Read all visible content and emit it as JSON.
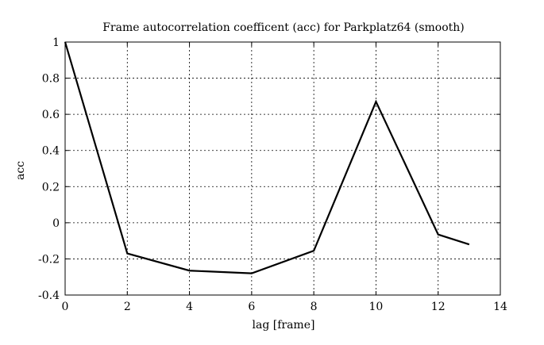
{
  "chart_data": {
    "type": "line",
    "title": "Frame autocorrelation coefficent (acc) for Parkplatz64 (smooth)",
    "xlabel": "lag [frame]",
    "ylabel": "acc",
    "xlim": [
      0,
      14
    ],
    "ylim": [
      -0.4,
      1
    ],
    "xticks": [
      0,
      2,
      4,
      6,
      8,
      10,
      12,
      14
    ],
    "yticks": [
      -0.4,
      -0.2,
      0,
      0.2,
      0.4,
      0.6,
      0.8,
      1
    ],
    "xtick_labels": [
      "0",
      "2",
      "4",
      "6",
      "8",
      "10",
      "12",
      "14"
    ],
    "ytick_labels": [
      "-0.4",
      "-0.2",
      "0",
      "0.2",
      "0.4",
      "0.6",
      "0.8",
      "1"
    ],
    "grid": true,
    "line_color": "#000000",
    "series": [
      {
        "x": [
          0,
          2,
          4,
          6,
          8,
          10,
          12,
          13
        ],
        "values": [
          1.0,
          -0.17,
          -0.265,
          -0.28,
          -0.155,
          0.67,
          -0.065,
          -0.12
        ]
      }
    ]
  }
}
